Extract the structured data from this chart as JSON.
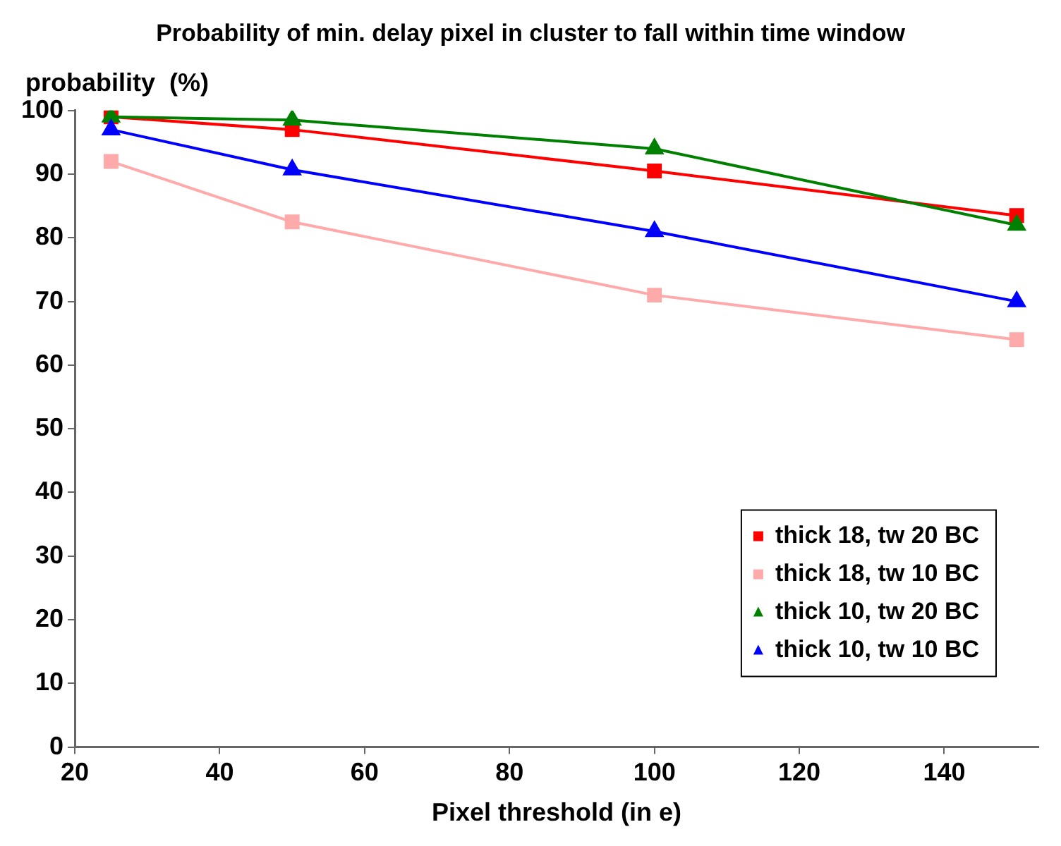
{
  "chart_data": {
    "type": "line",
    "title": "Probability of min. delay pixel in cluster to fall within time window",
    "xlabel": "Pixel threshold (in e)",
    "ylabel": "probability  (%)",
    "x": [
      25,
      50,
      100,
      150
    ],
    "series": [
      {
        "name": "thick 18, tw 20 BC",
        "color": "#ff0000",
        "marker": "square",
        "values": [
          99,
          97,
          90.5,
          83.5
        ]
      },
      {
        "name": "thick 18, tw 10 BC",
        "color": "#ffaaaa",
        "marker": "square",
        "values": [
          92,
          82.5,
          71,
          64
        ]
      },
      {
        "name": "thick 10, tw 20 BC",
        "color": "#008000",
        "marker": "triangle",
        "values": [
          99,
          98.5,
          94,
          82
        ]
      },
      {
        "name": "thick 10, tw 10 BC",
        "color": "#0000ff",
        "marker": "triangle",
        "values": [
          97,
          90.7,
          81,
          70
        ]
      }
    ],
    "xlim": [
      20,
      153
    ],
    "xticks": [
      20,
      40,
      60,
      80,
      100,
      120,
      140
    ],
    "ylim": [
      0,
      100
    ],
    "yticks": [
      0,
      10,
      20,
      30,
      40,
      50,
      60,
      70,
      80,
      90,
      100
    ],
    "grid": false,
    "legend": "bottom right",
    "line_style": "solid"
  }
}
